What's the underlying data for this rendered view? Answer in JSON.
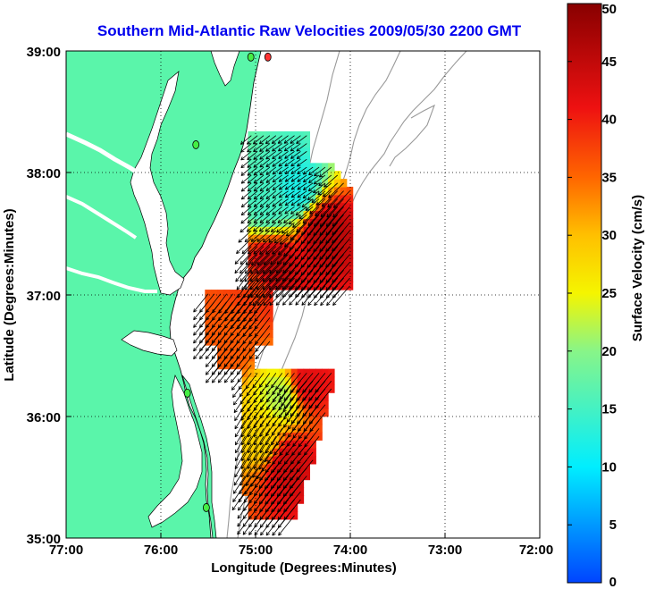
{
  "title": "Southern Mid-Atlantic Raw Velocities 2009/05/30 2200 GMT",
  "title_color": "#0000ee",
  "land_color": "#5af5aa",
  "ocean_color": "#ffffff",
  "xaxis": {
    "label": "Longitude (Degrees:Minutes)",
    "ticks": [
      "77:00",
      "76:00",
      "75:00",
      "74:00",
      "73:00",
      "72:00"
    ]
  },
  "yaxis": {
    "label": "Latitude (Degrees:Minutes)",
    "ticks": [
      "39:00",
      "38:00",
      "37:00",
      "36:00",
      "35:00"
    ]
  },
  "colorbar": {
    "label": "Surface Velocity (cm/s)",
    "ticks": [
      "50",
      "45",
      "40",
      "35",
      "30",
      "25",
      "20",
      "15",
      "10",
      "5",
      "0"
    ],
    "range": [
      0,
      50
    ]
  },
  "stations": [
    {
      "color": "#ff3333",
      "lon": -74.87,
      "lat": 38.95
    },
    {
      "color": "#44ee44",
      "lon": -75.05,
      "lat": 38.95
    },
    {
      "color": "#44ee44",
      "lon": -75.63,
      "lat": 38.23
    },
    {
      "color": "#44ee44",
      "lon": -75.72,
      "lat": 36.19
    },
    {
      "color": "#44ee44",
      "lon": -75.52,
      "lat": 35.25
    }
  ],
  "chart_data": {
    "type": "map",
    "xlim": [
      -77,
      -72
    ],
    "ylim": [
      35,
      39
    ],
    "grid": true,
    "units": "cm/s",
    "regions": [
      {
        "lon": -74.9,
        "lat": 37.8,
        "speed": 15,
        "dir": 230
      },
      {
        "lon": -74.6,
        "lat": 37.9,
        "speed": 12,
        "dir": 235
      },
      {
        "lon": -74.3,
        "lat": 37.55,
        "speed": 46,
        "dir": 220
      },
      {
        "lon": -74.85,
        "lat": 37.25,
        "speed": 45,
        "dir": 225
      },
      {
        "lon": -75.05,
        "lat": 37.1,
        "speed": 38,
        "dir": 215
      },
      {
        "lon": -75.28,
        "lat": 36.68,
        "speed": 36,
        "dir": 220
      },
      {
        "lon": -74.75,
        "lat": 36.2,
        "speed": 22,
        "dir": 215
      },
      {
        "lon": -74.5,
        "lat": 36.3,
        "speed": 42,
        "dir": 220
      },
      {
        "lon": -74.95,
        "lat": 35.85,
        "speed": 28,
        "dir": 210
      },
      {
        "lon": -74.7,
        "lat": 35.65,
        "speed": 44,
        "dir": 220
      }
    ]
  }
}
